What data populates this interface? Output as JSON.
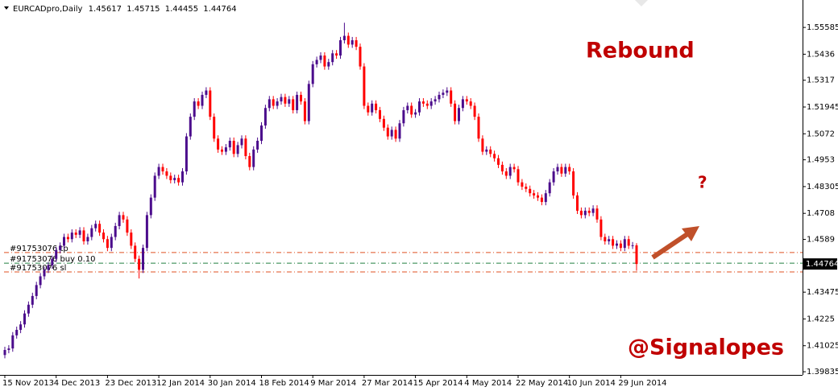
{
  "chart_data": {
    "type": "candlestick",
    "symbol": "EURCADpro,Daily",
    "categories": [
      "15 Nov 2013",
      null,
      null,
      null,
      null,
      null,
      null,
      null,
      null,
      null,
      null,
      null,
      null,
      "4 Dec 2013",
      null,
      null,
      null,
      null,
      null,
      null,
      null,
      null,
      null,
      null,
      null,
      null,
      "23 Dec 2013",
      null,
      null,
      null,
      null,
      null,
      null,
      null,
      null,
      null,
      null,
      null,
      null,
      "12 Jan 2014",
      null,
      null,
      null,
      null,
      null,
      null,
      null,
      null,
      null,
      null,
      null,
      null,
      "30 Jan 2014",
      null,
      null,
      null,
      null,
      null,
      null,
      null,
      null,
      null,
      null,
      null,
      null,
      "18 Feb 2014",
      null,
      null,
      null,
      null,
      null,
      null,
      null,
      null,
      null,
      null,
      null,
      null,
      "9 Mar 2014",
      null,
      null,
      null,
      null,
      null,
      null,
      null,
      null,
      null,
      null,
      null,
      null,
      "27 Mar 2014",
      null,
      null,
      null,
      null,
      null,
      null,
      null,
      null,
      null,
      null,
      null,
      null,
      "15 Apr 2014",
      null,
      null,
      null,
      null,
      null,
      null,
      null,
      null,
      null,
      null,
      null,
      null,
      "4 May 2014",
      null,
      null,
      null,
      null,
      null,
      null,
      null,
      null,
      null,
      null,
      null,
      null,
      "22 May 2014",
      null,
      null,
      null,
      null,
      null,
      null,
      null,
      null,
      null,
      null,
      null,
      null,
      "10 Jun 2014",
      null,
      null,
      null,
      null,
      null,
      null,
      null,
      null,
      null,
      null,
      null,
      null,
      "29 Jun 2014",
      null,
      null,
      null,
      null
    ],
    "open": [
      1.406,
      1.4083,
      1.409,
      1.415,
      1.4175,
      1.42,
      1.425,
      1.429,
      1.433,
      1.438,
      1.442,
      1.445,
      1.447,
      1.45,
      1.454,
      1.456,
      1.46,
      1.459,
      1.462,
      1.461,
      1.463,
      1.458,
      1.46,
      1.464,
      1.466,
      1.462,
      1.459,
      1.455,
      1.46,
      1.465,
      1.47,
      1.468,
      1.462,
      1.456,
      1.45,
      1.445,
      1.455,
      1.47,
      1.478,
      1.488,
      1.492,
      1.49,
      1.488,
      1.486,
      1.487,
      1.485,
      1.49,
      1.506,
      1.515,
      1.522,
      1.52,
      1.525,
      1.527,
      1.515,
      1.505,
      1.5,
      1.499,
      1.501,
      1.504,
      1.498,
      1.502,
      1.505,
      1.497,
      1.492,
      1.5,
      1.504,
      1.511,
      1.519,
      1.523,
      1.52,
      1.522,
      1.524,
      1.521,
      1.523,
      1.518,
      1.525,
      1.522,
      1.513,
      1.53,
      1.539,
      1.541,
      1.543,
      1.538,
      1.54,
      1.544,
      1.543,
      1.55,
      1.552,
      1.548,
      1.55,
      1.547,
      1.538,
      1.52,
      1.517,
      1.521,
      1.518,
      1.514,
      1.51,
      1.506,
      1.509,
      1.505,
      1.512,
      1.518,
      1.52,
      1.516,
      1.517,
      1.522,
      1.521,
      1.52,
      1.522,
      1.523,
      1.525,
      1.526,
      1.527,
      1.521,
      1.513,
      1.519,
      1.523,
      1.522,
      1.52,
      1.515,
      1.505,
      1.499,
      1.5,
      1.498,
      1.496,
      1.493,
      1.49,
      1.488,
      1.492,
      1.491,
      1.485,
      1.483,
      1.482,
      1.48,
      1.479,
      1.478,
      1.476,
      1.48,
      1.485,
      1.49,
      1.492,
      1.489,
      1.492,
      1.49,
      1.479,
      1.472,
      1.47,
      1.472,
      1.471,
      1.473,
      1.468,
      1.46,
      1.458,
      1.459,
      1.456,
      1.457,
      1.455,
      1.459,
      1.456,
      1.45617
    ],
    "high": [
      1.4098,
      1.4105,
      1.4165,
      1.419,
      1.4215,
      1.4265,
      1.4305,
      1.4345,
      1.4395,
      1.4435,
      1.4465,
      1.4485,
      1.4515,
      1.4555,
      1.4575,
      1.4615,
      1.4615,
      1.4635,
      1.4635,
      1.4645,
      1.4645,
      1.4615,
      1.4655,
      1.4675,
      1.4675,
      1.4635,
      1.4605,
      1.4615,
      1.4665,
      1.4715,
      1.4715,
      1.4695,
      1.4635,
      1.4575,
      1.4515,
      1.4565,
      1.4715,
      1.4795,
      1.4895,
      1.4935,
      1.4935,
      1.4915,
      1.4895,
      1.4885,
      1.4885,
      1.4915,
      1.5075,
      1.5165,
      1.5235,
      1.5235,
      1.5265,
      1.5285,
      1.5285,
      1.5165,
      1.5065,
      1.5015,
      1.5025,
      1.5055,
      1.5055,
      1.5035,
      1.5065,
      1.5065,
      1.4985,
      1.5015,
      1.5055,
      1.5125,
      1.5205,
      1.5245,
      1.5245,
      1.5235,
      1.5255,
      1.5255,
      1.5245,
      1.5245,
      1.5265,
      1.5265,
      1.5235,
      1.5315,
      1.5405,
      1.5425,
      1.5445,
      1.5445,
      1.5415,
      1.5455,
      1.5455,
      1.5515,
      1.558,
      1.5535,
      1.5515,
      1.5515,
      1.5485,
      1.5395,
      1.5215,
      1.5225,
      1.5225,
      1.5195,
      1.5155,
      1.5115,
      1.5105,
      1.5105,
      1.5135,
      1.5195,
      1.5215,
      1.5215,
      1.5185,
      1.5235,
      1.5235,
      1.5225,
      1.5235,
      1.5245,
      1.5265,
      1.5275,
      1.5285,
      1.5285,
      1.5225,
      1.5205,
      1.5245,
      1.5245,
      1.5235,
      1.5215,
      1.5165,
      1.5065,
      1.5015,
      1.5015,
      1.4995,
      1.4975,
      1.4945,
      1.4915,
      1.4935,
      1.4935,
      1.4925,
      1.4865,
      1.4845,
      1.4835,
      1.4815,
      1.4805,
      1.4795,
      1.4815,
      1.4865,
      1.4915,
      1.4935,
      1.4935,
      1.4935,
      1.4935,
      1.4915,
      1.4805,
      1.4735,
      1.4735,
      1.4735,
      1.4745,
      1.4745,
      1.4695,
      1.4615,
      1.4605,
      1.4605,
      1.4585,
      1.4585,
      1.4605,
      1.4605,
      1.4577,
      1.45715
    ],
    "low": [
      1.4045,
      1.4068,
      1.4075,
      1.4135,
      1.416,
      1.4185,
      1.4235,
      1.4275,
      1.4315,
      1.4365,
      1.4405,
      1.4435,
      1.4455,
      1.4485,
      1.4525,
      1.4545,
      1.4575,
      1.4575,
      1.4595,
      1.4595,
      1.4565,
      1.4565,
      1.4585,
      1.4625,
      1.4605,
      1.4575,
      1.4535,
      1.4535,
      1.4585,
      1.4635,
      1.4665,
      1.4605,
      1.4545,
      1.4485,
      1.441,
      1.4435,
      1.4535,
      1.4685,
      1.4765,
      1.4865,
      1.4885,
      1.4865,
      1.4845,
      1.4845,
      1.4835,
      1.4835,
      1.4885,
      1.5045,
      1.5135,
      1.5185,
      1.5185,
      1.5235,
      1.5135,
      1.5035,
      1.4985,
      1.4975,
      1.4975,
      1.4995,
      1.4965,
      1.4965,
      1.5005,
      1.4955,
      1.4905,
      1.4905,
      1.4985,
      1.5025,
      1.5095,
      1.5175,
      1.5185,
      1.5185,
      1.5205,
      1.5195,
      1.5195,
      1.5165,
      1.5165,
      1.5205,
      1.5115,
      1.5115,
      1.5285,
      1.5375,
      1.5395,
      1.5365,
      1.5365,
      1.5385,
      1.5415,
      1.5415,
      1.5485,
      1.5465,
      1.5465,
      1.5455,
      1.5365,
      1.5185,
      1.5155,
      1.5155,
      1.5165,
      1.5125,
      1.5085,
      1.5045,
      1.5045,
      1.5035,
      1.5035,
      1.5105,
      1.5165,
      1.5145,
      1.5145,
      1.5155,
      1.5195,
      1.5185,
      1.5185,
      1.5205,
      1.5215,
      1.5235,
      1.5245,
      1.5195,
      1.5115,
      1.5115,
      1.5175,
      1.5205,
      1.5185,
      1.5135,
      1.5035,
      1.4975,
      1.4975,
      1.4965,
      1.4945,
      1.4915,
      1.4885,
      1.4865,
      1.4865,
      1.4895,
      1.4835,
      1.4815,
      1.4805,
      1.4785,
      1.4775,
      1.4765,
      1.4745,
      1.4745,
      1.4785,
      1.4835,
      1.4885,
      1.4875,
      1.4875,
      1.4885,
      1.4775,
      1.4705,
      1.4685,
      1.4685,
      1.4695,
      1.4695,
      1.4665,
      1.4585,
      1.4565,
      1.4565,
      1.4545,
      1.4545,
      1.4535,
      1.4535,
      1.4545,
      1.4545,
      1.44455
    ],
    "close": [
      1.4083,
      1.409,
      1.415,
      1.4175,
      1.42,
      1.425,
      1.429,
      1.433,
      1.438,
      1.442,
      1.445,
      1.447,
      1.45,
      1.454,
      1.456,
      1.46,
      1.459,
      1.462,
      1.461,
      1.463,
      1.458,
      1.46,
      1.464,
      1.466,
      1.462,
      1.459,
      1.455,
      1.46,
      1.465,
      1.47,
      1.468,
      1.462,
      1.456,
      1.45,
      1.445,
      1.455,
      1.47,
      1.478,
      1.488,
      1.492,
      1.49,
      1.488,
      1.486,
      1.487,
      1.485,
      1.49,
      1.506,
      1.515,
      1.522,
      1.52,
      1.525,
      1.527,
      1.515,
      1.505,
      1.5,
      1.499,
      1.501,
      1.504,
      1.498,
      1.502,
      1.505,
      1.497,
      1.492,
      1.5,
      1.504,
      1.511,
      1.519,
      1.523,
      1.52,
      1.522,
      1.524,
      1.521,
      1.523,
      1.518,
      1.525,
      1.522,
      1.513,
      1.53,
      1.539,
      1.541,
      1.543,
      1.538,
      1.54,
      1.544,
      1.543,
      1.55,
      1.552,
      1.548,
      1.55,
      1.547,
      1.538,
      1.52,
      1.517,
      1.521,
      1.518,
      1.514,
      1.51,
      1.506,
      1.509,
      1.505,
      1.512,
      1.518,
      1.52,
      1.516,
      1.517,
      1.522,
      1.521,
      1.52,
      1.522,
      1.523,
      1.525,
      1.526,
      1.527,
      1.521,
      1.513,
      1.519,
      1.523,
      1.522,
      1.52,
      1.515,
      1.505,
      1.499,
      1.5,
      1.498,
      1.496,
      1.493,
      1.49,
      1.488,
      1.492,
      1.491,
      1.485,
      1.483,
      1.482,
      1.48,
      1.479,
      1.478,
      1.476,
      1.48,
      1.485,
      1.49,
      1.492,
      1.489,
      1.492,
      1.49,
      1.479,
      1.472,
      1.47,
      1.472,
      1.471,
      1.473,
      1.468,
      1.46,
      1.458,
      1.459,
      1.456,
      1.457,
      1.455,
      1.459,
      1.456,
      1.4562,
      1.44764
    ],
    "up_color": "#4b0c8c",
    "down_color": "#ff0000",
    "ylim": [
      1.3969,
      1.5684
    ],
    "yticks": [
      1.55585,
      1.5436,
      1.5317,
      1.51945,
      1.5072,
      1.4953,
      1.48305,
      1.4708,
      1.4589,
      1.43475,
      1.4225,
      1.41025,
      1.39835
    ],
    "levels": [
      {
        "label": "#91753076 tp",
        "value": 1.4529,
        "color": "#e05020"
      },
      {
        "label": "#91753076 buy 0.10",
        "value": 1.448,
        "color": "#208040"
      },
      {
        "label": "#91753076 sl",
        "value": 1.444,
        "color": "#e05020"
      }
    ],
    "annotations": [
      "Rebound",
      "?",
      "@Signalopes"
    ]
  }
}
